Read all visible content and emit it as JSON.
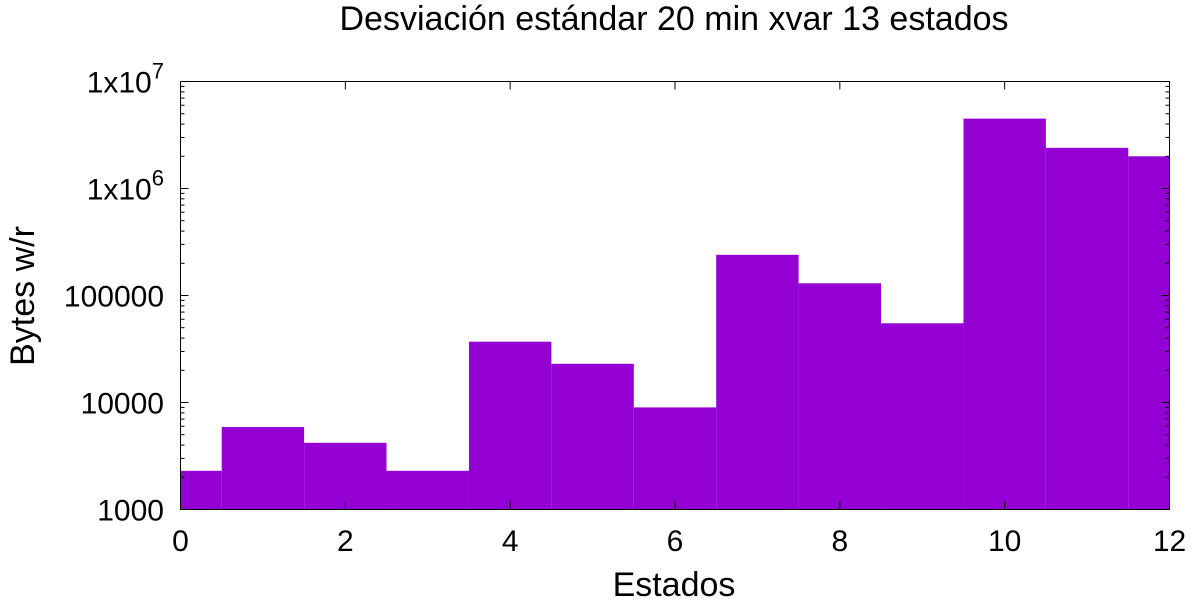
{
  "chart_data": {
    "type": "bar",
    "title": "Desviación estándar  20 min xvar 13 estados",
    "xlabel": "Estados",
    "ylabel": "Bytes w/r",
    "x": [
      0,
      1,
      2,
      3,
      4,
      5,
      6,
      7,
      8,
      9,
      10,
      11,
      12
    ],
    "values": [
      2300,
      5900,
      4200,
      2300,
      37000,
      23000,
      9000,
      240000,
      130000,
      55000,
      4500000,
      2400000,
      2000000
    ],
    "xlim": [
      0,
      12
    ],
    "ylim": [
      1000,
      10000000
    ],
    "yscale": "log",
    "xticks": [
      0,
      2,
      4,
      6,
      8,
      10,
      12
    ],
    "xtick_labels": [
      "0",
      "2",
      "4",
      "6",
      "8",
      "10",
      "12"
    ],
    "yticks": [
      1000,
      10000,
      100000,
      1000000,
      10000000
    ],
    "ytick_labels": [
      {
        "base": "1000",
        "exp": ""
      },
      {
        "base": "10000",
        "exp": ""
      },
      {
        "base": "100000",
        "exp": ""
      },
      {
        "base": "1x10",
        "exp": "6"
      },
      {
        "base": "1x10",
        "exp": "7"
      }
    ],
    "bar_color": "#9400d3",
    "grid": false,
    "legend": "none"
  }
}
